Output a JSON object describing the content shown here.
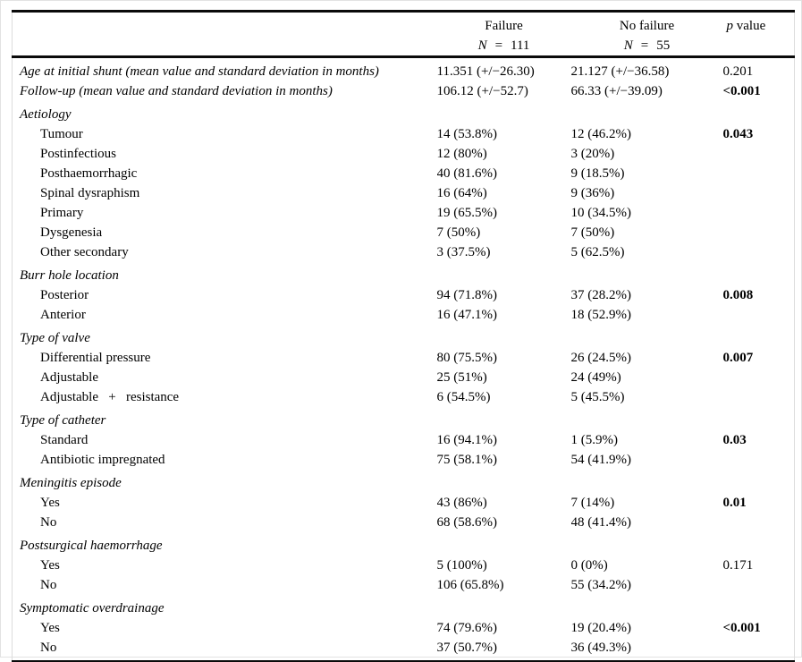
{
  "table": {
    "header": {
      "failure": {
        "label": "Failure",
        "n_symbol": "N",
        "equals": "=",
        "n_value": "111"
      },
      "no_failure": {
        "label": "No failure",
        "n_symbol": "N",
        "equals": "=",
        "n_value": "55"
      },
      "p": {
        "symbol": "p",
        "rest": "value"
      }
    },
    "rows": [
      {
        "style": "measure",
        "label": "Age at initial shunt (mean value and standard deviation in months)",
        "failure": "11.351 (+/−26.30)",
        "no_failure": "21.127 (+/−36.58)",
        "p": "0.201",
        "p_bold": false
      },
      {
        "style": "measure",
        "label": "Follow-up (mean value and standard deviation in months)",
        "failure": "106.12 (+/−52.7)",
        "no_failure": "66.33 (+/−39.09)",
        "p": "<0.001",
        "p_bold": true
      },
      {
        "style": "section",
        "label": "Aetiology",
        "failure": "",
        "no_failure": "",
        "p": "",
        "p_bold": false
      },
      {
        "style": "item",
        "label": "Tumour",
        "failure": "14 (53.8%)",
        "no_failure": "12 (46.2%)",
        "p": "0.043",
        "p_bold": true
      },
      {
        "style": "item",
        "label": "Postinfectious",
        "failure": "12 (80%)",
        "no_failure": "3 (20%)",
        "p": "",
        "p_bold": false
      },
      {
        "style": "item",
        "label": "Posthaemorrhagic",
        "failure": "40 (81.6%)",
        "no_failure": "9 (18.5%)",
        "p": "",
        "p_bold": false
      },
      {
        "style": "item",
        "label": "Spinal dysraphism",
        "failure": "16 (64%)",
        "no_failure": "9 (36%)",
        "p": "",
        "p_bold": false
      },
      {
        "style": "item",
        "label": "Primary",
        "failure": "19 (65.5%)",
        "no_failure": "10 (34.5%)",
        "p": "",
        "p_bold": false
      },
      {
        "style": "item",
        "label": "Dysgenesia",
        "failure": "7 (50%)",
        "no_failure": "7 (50%)",
        "p": "",
        "p_bold": false
      },
      {
        "style": "item",
        "label": "Other secondary",
        "failure": "3 (37.5%)",
        "no_failure": "5 (62.5%)",
        "p": "",
        "p_bold": false
      },
      {
        "style": "section",
        "label": "Burr hole location",
        "failure": "",
        "no_failure": "",
        "p": "",
        "p_bold": false
      },
      {
        "style": "item",
        "label": "Posterior",
        "failure": "94 (71.8%)",
        "no_failure": "37 (28.2%)",
        "p": "0.008",
        "p_bold": true
      },
      {
        "style": "item",
        "label": "Anterior",
        "failure": "16 (47.1%)",
        "no_failure": "18 (52.9%)",
        "p": "",
        "p_bold": false
      },
      {
        "style": "section",
        "label": "Type of valve",
        "failure": "",
        "no_failure": "",
        "p": "",
        "p_bold": false
      },
      {
        "style": "item",
        "label": "Differential pressure",
        "failure": "80 (75.5%)",
        "no_failure": "26 (24.5%)",
        "p": "0.007",
        "p_bold": true
      },
      {
        "style": "item",
        "label": "Adjustable",
        "failure": "25 (51%)",
        "no_failure": "24 (49%)",
        "p": "",
        "p_bold": false
      },
      {
        "style": "item",
        "label": "Adjustable   +   resistance",
        "failure": "6 (54.5%)",
        "no_failure": "5 (45.5%)",
        "p": "",
        "p_bold": false
      },
      {
        "style": "section",
        "label": "Type of catheter",
        "failure": "",
        "no_failure": "",
        "p": "",
        "p_bold": false
      },
      {
        "style": "item",
        "label": "Standard",
        "failure": "16 (94.1%)",
        "no_failure": "1 (5.9%)",
        "p": "0.03",
        "p_bold": true
      },
      {
        "style": "item",
        "label": "Antibiotic impregnated",
        "failure": "75 (58.1%)",
        "no_failure": "54 (41.9%)",
        "p": "",
        "p_bold": false
      },
      {
        "style": "section",
        "label": "Meningitis episode",
        "failure": "",
        "no_failure": "",
        "p": "",
        "p_bold": false
      },
      {
        "style": "item",
        "label": "Yes",
        "failure": "43 (86%)",
        "no_failure": "7 (14%)",
        "p": "0.01",
        "p_bold": true
      },
      {
        "style": "item",
        "label": "No",
        "failure": "68 (58.6%)",
        "no_failure": "48 (41.4%)",
        "p": "",
        "p_bold": false
      },
      {
        "style": "section",
        "label": "Postsurgical haemorrhage",
        "failure": "",
        "no_failure": "",
        "p": "",
        "p_bold": false
      },
      {
        "style": "item",
        "label": "Yes",
        "failure": "5 (100%)",
        "no_failure": "0 (0%)",
        "p": "0.171",
        "p_bold": false
      },
      {
        "style": "item",
        "label": "No",
        "failure": "106 (65.8%)",
        "no_failure": "55 (34.2%)",
        "p": "",
        "p_bold": false
      },
      {
        "style": "section",
        "label": "Symptomatic overdrainage",
        "failure": "",
        "no_failure": "",
        "p": "",
        "p_bold": false
      },
      {
        "style": "item",
        "label": "Yes",
        "failure": "74 (79.6%)",
        "no_failure": "19 (20.4%)",
        "p": "<0.001",
        "p_bold": true
      },
      {
        "style": "item",
        "label": "No",
        "failure": "37 (50.7%)",
        "no_failure": "36 (49.3%)",
        "p": "",
        "p_bold": false
      }
    ]
  }
}
